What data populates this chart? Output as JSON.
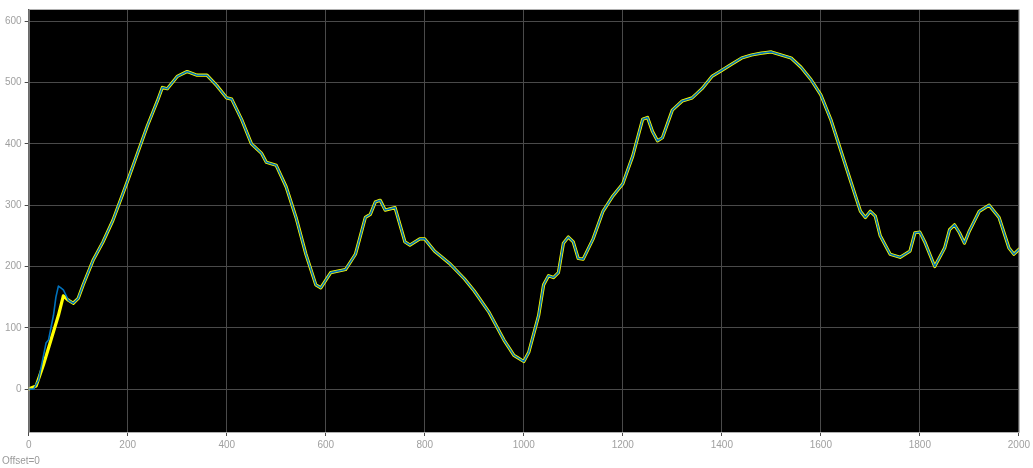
{
  "chart_data": {
    "type": "line",
    "xlim": [
      0,
      2000
    ],
    "ylim": [
      -70,
      620
    ],
    "xticks": [
      0,
      200,
      400,
      600,
      800,
      1000,
      1200,
      1400,
      1600,
      1800,
      2000
    ],
    "yticks": [
      0,
      100,
      200,
      300,
      400,
      500,
      600
    ],
    "grid": true,
    "legend": false,
    "marker": "none",
    "line_style": "solid",
    "annotations": [
      "Offset=0"
    ],
    "series": [
      {
        "color": "#0072bd",
        "x": [
          0,
          10,
          20,
          30,
          35,
          40,
          45,
          50,
          55,
          60,
          65,
          70,
          80,
          90,
          100,
          110,
          130,
          150,
          170,
          200,
          220,
          240,
          260,
          270,
          280,
          300,
          320,
          340,
          360,
          380,
          400,
          410,
          430,
          450,
          470,
          480,
          500,
          520,
          540,
          560,
          580,
          590,
          610,
          640,
          660,
          680,
          690,
          700,
          710,
          720,
          740,
          760,
          770,
          790,
          800,
          820,
          850,
          880,
          900,
          930,
          960,
          980,
          990,
          1000,
          1010,
          1030,
          1040,
          1050,
          1060,
          1070,
          1080,
          1090,
          1100,
          1110,
          1120,
          1140,
          1160,
          1180,
          1200,
          1220,
          1240,
          1250,
          1260,
          1270,
          1280,
          1300,
          1320,
          1340,
          1360,
          1380,
          1400,
          1420,
          1440,
          1460,
          1480,
          1500,
          1520,
          1540,
          1560,
          1580,
          1600,
          1620,
          1640,
          1660,
          1680,
          1690,
          1700,
          1710,
          1720,
          1740,
          1760,
          1780,
          1790,
          1800,
          1810,
          1830,
          1850,
          1860,
          1870,
          1880,
          1890,
          1900,
          1920,
          1940,
          1960,
          1980,
          1990,
          2000
        ],
        "values": [
          0,
          0,
          15,
          55,
          75,
          80,
          100,
          120,
          150,
          168,
          165,
          162,
          145,
          140,
          148,
          170,
          210,
          240,
          275,
          340,
          385,
          430,
          470,
          492,
          490,
          510,
          518,
          512,
          512,
          495,
          475,
          473,
          440,
          400,
          385,
          370,
          365,
          330,
          280,
          220,
          170,
          165,
          190,
          195,
          220,
          280,
          285,
          305,
          308,
          292,
          296,
          240,
          235,
          245,
          245,
          225,
          205,
          180,
          160,
          125,
          80,
          55,
          50,
          45,
          60,
          120,
          170,
          185,
          182,
          190,
          238,
          248,
          240,
          213,
          212,
          245,
          290,
          315,
          335,
          380,
          440,
          443,
          420,
          405,
          410,
          455,
          470,
          475,
          490,
          510,
          520,
          530,
          540,
          545,
          548,
          550,
          545,
          540,
          525,
          505,
          480,
          440,
          390,
          340,
          290,
          280,
          290,
          282,
          250,
          220,
          215,
          225,
          255,
          256,
          240,
          200,
          230,
          260,
          268,
          255,
          238,
          258,
          290,
          300,
          280,
          230,
          220,
          228
        ]
      },
      {
        "color": "#ffff00",
        "x": [
          0,
          15,
          30,
          45,
          60,
          70,
          80,
          90,
          100,
          110,
          130,
          150,
          170,
          200,
          220,
          240,
          260,
          270,
          280,
          300,
          320,
          340,
          360,
          380,
          400,
          410,
          430,
          450,
          470,
          480,
          500,
          520,
          540,
          560,
          580,
          590,
          610,
          640,
          660,
          680,
          690,
          700,
          710,
          720,
          740,
          760,
          770,
          790,
          800,
          820,
          850,
          880,
          900,
          930,
          960,
          980,
          990,
          1000,
          1010,
          1030,
          1040,
          1050,
          1060,
          1070,
          1080,
          1090,
          1100,
          1110,
          1120,
          1140,
          1160,
          1180,
          1200,
          1220,
          1240,
          1250,
          1260,
          1270,
          1280,
          1300,
          1320,
          1340,
          1360,
          1380,
          1400,
          1420,
          1440,
          1460,
          1480,
          1500,
          1520,
          1540,
          1560,
          1580,
          1600,
          1620,
          1640,
          1660,
          1680,
          1690,
          1700,
          1710,
          1720,
          1740,
          1760,
          1780,
          1790,
          1800,
          1810,
          1830,
          1850,
          1860,
          1870,
          1880,
          1890,
          1900,
          1920,
          1940,
          1960,
          1980,
          1990,
          2000
        ],
        "values": [
          0,
          5,
          40,
          80,
          120,
          152,
          145,
          140,
          148,
          170,
          210,
          240,
          275,
          340,
          385,
          430,
          470,
          492,
          490,
          510,
          518,
          512,
          512,
          495,
          475,
          473,
          440,
          400,
          385,
          370,
          365,
          330,
          280,
          220,
          170,
          165,
          190,
          195,
          220,
          280,
          285,
          305,
          308,
          292,
          296,
          240,
          235,
          245,
          245,
          225,
          205,
          180,
          160,
          125,
          80,
          55,
          50,
          45,
          60,
          120,
          170,
          185,
          182,
          190,
          238,
          248,
          240,
          213,
          212,
          245,
          290,
          315,
          335,
          380,
          440,
          443,
          420,
          405,
          410,
          455,
          470,
          475,
          490,
          510,
          520,
          530,
          540,
          545,
          548,
          550,
          545,
          540,
          525,
          505,
          480,
          440,
          390,
          340,
          290,
          280,
          290,
          282,
          250,
          220,
          215,
          225,
          255,
          256,
          240,
          200,
          230,
          260,
          268,
          255,
          238,
          258,
          290,
          300,
          280,
          230,
          220,
          228
        ]
      }
    ]
  }
}
